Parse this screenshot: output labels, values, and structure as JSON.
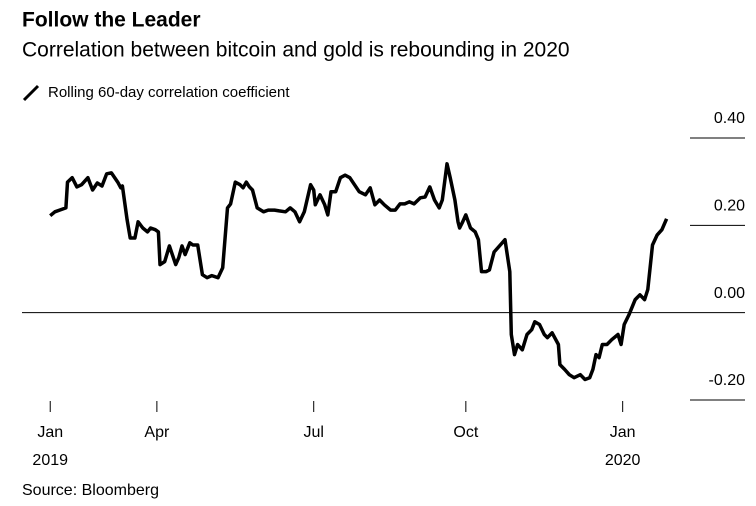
{
  "chart_data": {
    "type": "line",
    "title": "Follow the Leader",
    "subtitle": "Correlation between bitcoin and gold is rebounding in 2020",
    "source": "Source: Bloomberg",
    "x": [
      0,
      3,
      6,
      10,
      11,
      14,
      17,
      20,
      24,
      27,
      30,
      33,
      36,
      39,
      43,
      45,
      46,
      49,
      51,
      54,
      56,
      59,
      62,
      64,
      67,
      69,
      70,
      73,
      76,
      80,
      82,
      84,
      86,
      89,
      91,
      94,
      97,
      100,
      103,
      107,
      110,
      113,
      115,
      118,
      121,
      123,
      125,
      127,
      129,
      132,
      136,
      139,
      143,
      146,
      150,
      153,
      156,
      159,
      162,
      166,
      168,
      169,
      172,
      175,
      177,
      179,
      182,
      185,
      188,
      191,
      194,
      197,
      201,
      204,
      207,
      210,
      213,
      217,
      220,
      223,
      226,
      229,
      232,
      236,
      239,
      242,
      245,
      248,
      250,
      253,
      255,
      258,
      260,
      261,
      263,
      265,
      268,
      271,
      273,
      275,
      278,
      280,
      283,
      287,
      290,
      293,
      294,
      296,
      298,
      301,
      304,
      307,
      309,
      312,
      315,
      317,
      320,
      324,
      325,
      328,
      331,
      334,
      338,
      341,
      344,
      346,
      348,
      350,
      352,
      355,
      358,
      362,
      364,
      366,
      369,
      373,
      376,
      379,
      381,
      384,
      387,
      390,
      393
    ],
    "series": [
      {
        "name": "Rolling 60-day correlation coefficient",
        "color": "#000000",
        "values": [
          0.222,
          0.231,
          0.235,
          0.24,
          0.299,
          0.309,
          0.288,
          0.293,
          0.309,
          0.281,
          0.297,
          0.29,
          0.318,
          0.32,
          0.299,
          0.286,
          0.29,
          0.213,
          0.171,
          0.171,
          0.208,
          0.194,
          0.185,
          0.194,
          0.19,
          0.185,
          0.11,
          0.117,
          0.153,
          0.11,
          0.126,
          0.153,
          0.133,
          0.16,
          0.155,
          0.155,
          0.087,
          0.08,
          0.085,
          0.08,
          0.103,
          0.24,
          0.249,
          0.299,
          0.293,
          0.286,
          0.299,
          0.288,
          0.281,
          0.24,
          0.231,
          0.235,
          0.235,
          0.233,
          0.231,
          0.24,
          0.231,
          0.208,
          0.231,
          0.293,
          0.281,
          0.247,
          0.27,
          0.247,
          0.224,
          0.277,
          0.277,
          0.309,
          0.315,
          0.309,
          0.293,
          0.277,
          0.27,
          0.286,
          0.247,
          0.258,
          0.247,
          0.235,
          0.235,
          0.249,
          0.249,
          0.254,
          0.249,
          0.263,
          0.265,
          0.288,
          0.258,
          0.24,
          0.258,
          0.341,
          0.309,
          0.258,
          0.208,
          0.194,
          0.208,
          0.224,
          0.194,
          0.185,
          0.167,
          0.094,
          0.094,
          0.098,
          0.139,
          0.155,
          0.167,
          0.094,
          -0.05,
          -0.096,
          -0.073,
          -0.085,
          -0.05,
          -0.039,
          -0.021,
          -0.027,
          -0.05,
          -0.057,
          -0.046,
          -0.073,
          -0.119,
          -0.13,
          -0.142,
          -0.149,
          -0.142,
          -0.153,
          -0.149,
          -0.13,
          -0.096,
          -0.103,
          -0.073,
          -0.073,
          -0.062,
          -0.05,
          -0.073,
          -0.027,
          -0.005,
          0.03,
          0.041,
          0.03,
          0.053,
          0.155,
          0.178,
          0.19,
          0.215
        ]
      }
    ],
    "xlim": [
      -18,
      443
    ],
    "xticks": [
      {
        "value": 0,
        "label": "Jan",
        "sublabel": "2019"
      },
      {
        "value": 68,
        "label": "Apr"
      },
      {
        "value": 168,
        "label": "Jul"
      },
      {
        "value": 265,
        "label": "Oct"
      },
      {
        "value": 365,
        "label": "Jan",
        "sublabel": "2020"
      }
    ],
    "ylim": [
      -0.2,
      0.4
    ],
    "yticks": [
      {
        "value": 0.4,
        "label": "0.40"
      },
      {
        "value": 0.2,
        "label": "0.20"
      },
      {
        "value": 0,
        "label": "0.00"
      },
      {
        "value": -0.2,
        "label": "-0.20"
      }
    ],
    "zero_line": true
  }
}
